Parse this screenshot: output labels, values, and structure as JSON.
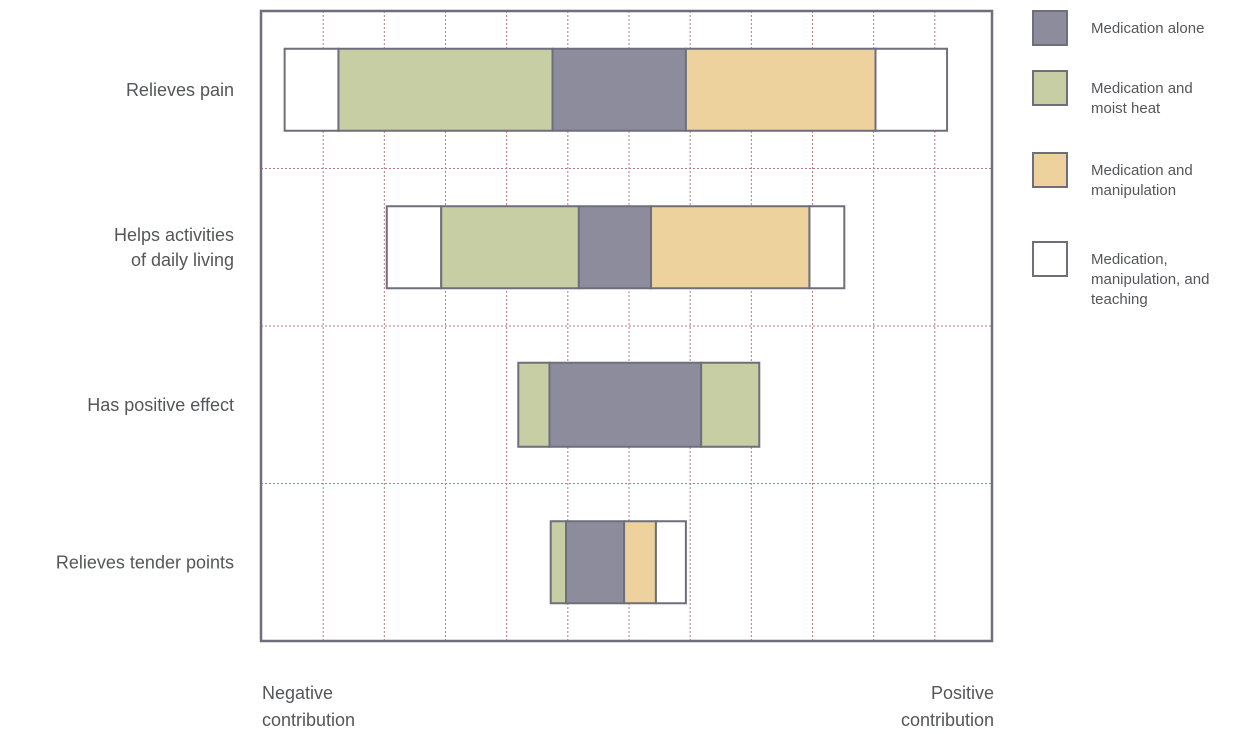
{
  "chart_data": {
    "type": "bar",
    "subtype": "stacked-horizontal-centered",
    "title": "",
    "categories": [
      "Relieves pain",
      "Helps activities of daily living",
      "Has positive effect",
      "Relieves tender points"
    ],
    "category_label_lines": [
      [
        "Relieves pain"
      ],
      [
        "Helps activities",
        "of daily living"
      ],
      [
        "Has positive effect"
      ],
      [
        "Relieves tender points"
      ]
    ],
    "x_axis": {
      "left_label": [
        "Negative",
        "contribution"
      ],
      "right_label": [
        "Positive",
        "contribution"
      ],
      "range": [
        -5,
        7
      ],
      "grid": true
    },
    "series": [
      {
        "name": "Medication, manipulation, and teaching",
        "color": "#ffffff"
      },
      {
        "name": "Medication and moist heat",
        "color": "#c7cea3"
      },
      {
        "name": "Medication alone",
        "color": "#8d8c9c"
      },
      {
        "name": "Medication and manipulation",
        "color": "#edd29e"
      }
    ],
    "bars": [
      {
        "category": "Relieves pain",
        "segments": [
          {
            "series": "Medication, manipulation, and teaching",
            "start": -4.63,
            "end": -3.75
          },
          {
            "series": "Medication and moist heat",
            "start": -3.75,
            "end": -0.25
          },
          {
            "series": "Medication alone",
            "start": -0.25,
            "end": 1.93
          },
          {
            "series": "Medication and manipulation",
            "start": 1.93,
            "end": 5.03
          },
          {
            "series": "Medication, manipulation, and teaching",
            "start": 5.03,
            "end": 6.2
          }
        ]
      },
      {
        "category": "Helps activities of daily living",
        "segments": [
          {
            "series": "Medication, manipulation, and teaching",
            "start": -2.96,
            "end": -2.07
          },
          {
            "series": "Medication and moist heat",
            "start": -2.07,
            "end": 0.18
          },
          {
            "series": "Medication alone",
            "start": 0.18,
            "end": 1.36
          },
          {
            "series": "Medication and manipulation",
            "start": 1.36,
            "end": 3.95
          },
          {
            "series": "Medication, manipulation, and teaching",
            "start": 3.95,
            "end": 4.52
          }
        ]
      },
      {
        "category": "Has positive effect",
        "segments": [
          {
            "series": "Medication and moist heat",
            "start": -0.81,
            "end": -0.3
          },
          {
            "series": "Medication alone",
            "start": -0.3,
            "end": 2.18
          },
          {
            "series": "Medication and moist heat",
            "start": 2.18,
            "end": 3.13
          }
        ]
      },
      {
        "category": "Relieves tender points",
        "segments": [
          {
            "series": "Medication and moist heat",
            "start": -0.28,
            "end": -0.03
          },
          {
            "series": "Medication alone",
            "start": -0.03,
            "end": 0.92
          },
          {
            "series": "Medication and manipulation",
            "start": 0.92,
            "end": 1.44
          },
          {
            "series": "Medication, manipulation, and teaching",
            "start": 1.44,
            "end": 1.93
          }
        ]
      }
    ],
    "legend": {
      "position": "right",
      "items": [
        {
          "series": "Medication alone",
          "color": "#8d8c9c",
          "lines": [
            "Medication alone"
          ]
        },
        {
          "series": "Medication and moist heat",
          "color": "#c7cea3",
          "lines": [
            "Medication and",
            "moist heat"
          ]
        },
        {
          "series": "Medication and manipulation",
          "color": "#edd29e",
          "lines": [
            "Medication and",
            "manipulation"
          ]
        },
        {
          "series": "Medication, manipulation, and teaching",
          "color": "#ffffff",
          "lines": [
            "Medication,",
            "manipulation, and",
            "teaching"
          ]
        }
      ]
    },
    "colors": {
      "frame": "#6f6e7c",
      "grid": "#b77a80",
      "segment_stroke": "#6f6e7c"
    }
  }
}
